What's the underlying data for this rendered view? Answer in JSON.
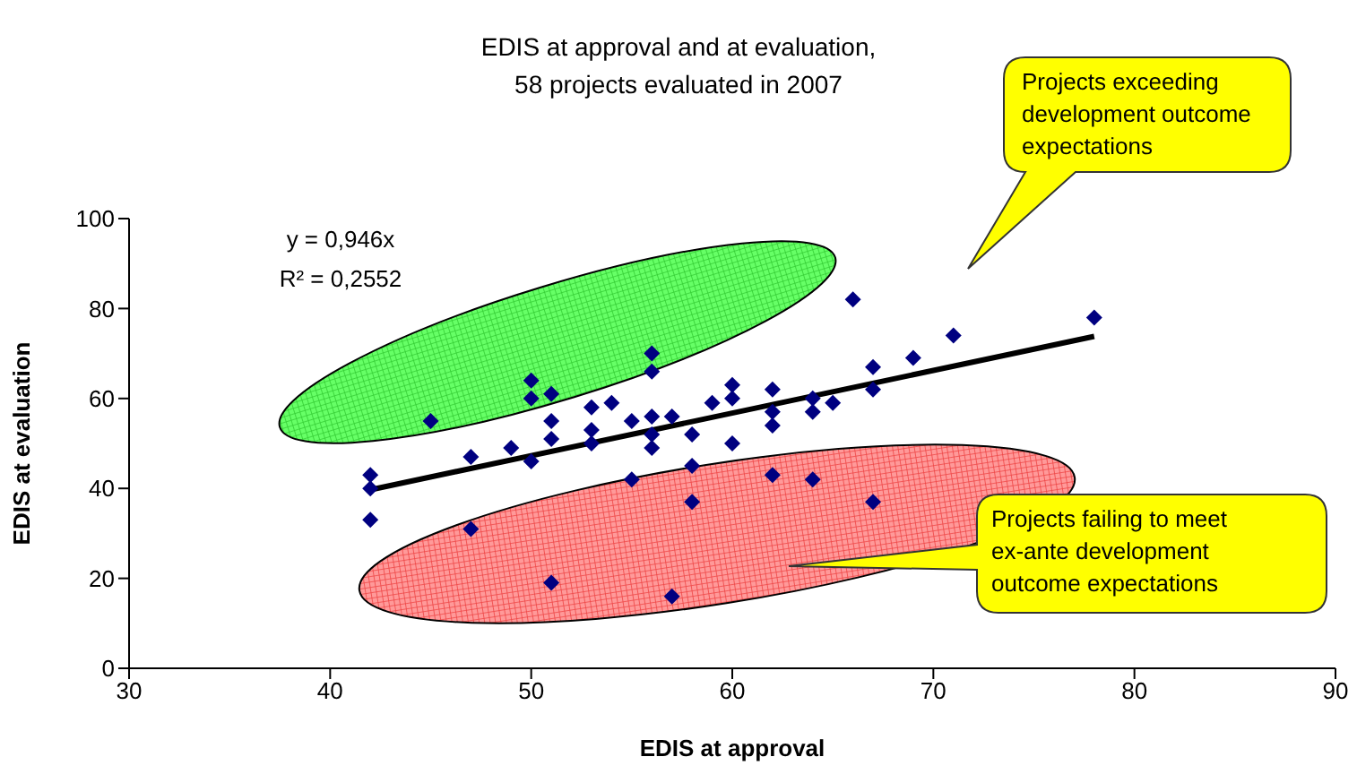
{
  "chart_data": {
    "type": "scatter",
    "title": "EDIS at approval and at evaluation,\n58 projects evaluated in 2007",
    "xlabel": "EDIS at approval",
    "ylabel": "EDIS at evaluation",
    "annotations": [
      "y = 0,946x",
      "R² = 0,2552",
      "Projects exceeding development outcome expectations",
      "Projects failing to meet ex-ante development outcome expectations"
    ],
    "xlim": [
      30,
      90
    ],
    "xticks": [
      30,
      40,
      50,
      60,
      70,
      80,
      90
    ],
    "ylim": [
      0,
      100
    ],
    "yticks": [
      0,
      20,
      40,
      60,
      80,
      100
    ],
    "marker": "diamond",
    "series": [
      {
        "color": "#000080",
        "x": [
          42,
          42,
          42,
          45,
          47,
          47,
          49,
          50,
          50,
          50,
          51,
          51,
          51,
          51,
          53,
          53,
          53,
          54,
          55,
          55,
          56,
          56,
          56,
          56,
          56,
          57,
          57,
          58,
          58,
          58,
          59,
          60,
          60,
          60,
          62,
          62,
          62,
          62,
          64,
          64,
          64,
          65,
          66,
          67,
          67,
          67,
          69,
          71,
          78
        ],
        "values": [
          43,
          40,
          33,
          55,
          47,
          31,
          49,
          64,
          60,
          46,
          61,
          55,
          51,
          19,
          58,
          53,
          50,
          59,
          55,
          42,
          70,
          66,
          56,
          52,
          49,
          56,
          16,
          52,
          45,
          37,
          59,
          63,
          60,
          50,
          62,
          57,
          54,
          43,
          60,
          57,
          42,
          59,
          82,
          67,
          62,
          37,
          69,
          74,
          78
        ]
      },
      {
        "type": "line",
        "color": "#000000",
        "marker": "none",
        "x": [
          42,
          78
        ],
        "values": [
          39.7,
          73.8
        ]
      }
    ]
  }
}
